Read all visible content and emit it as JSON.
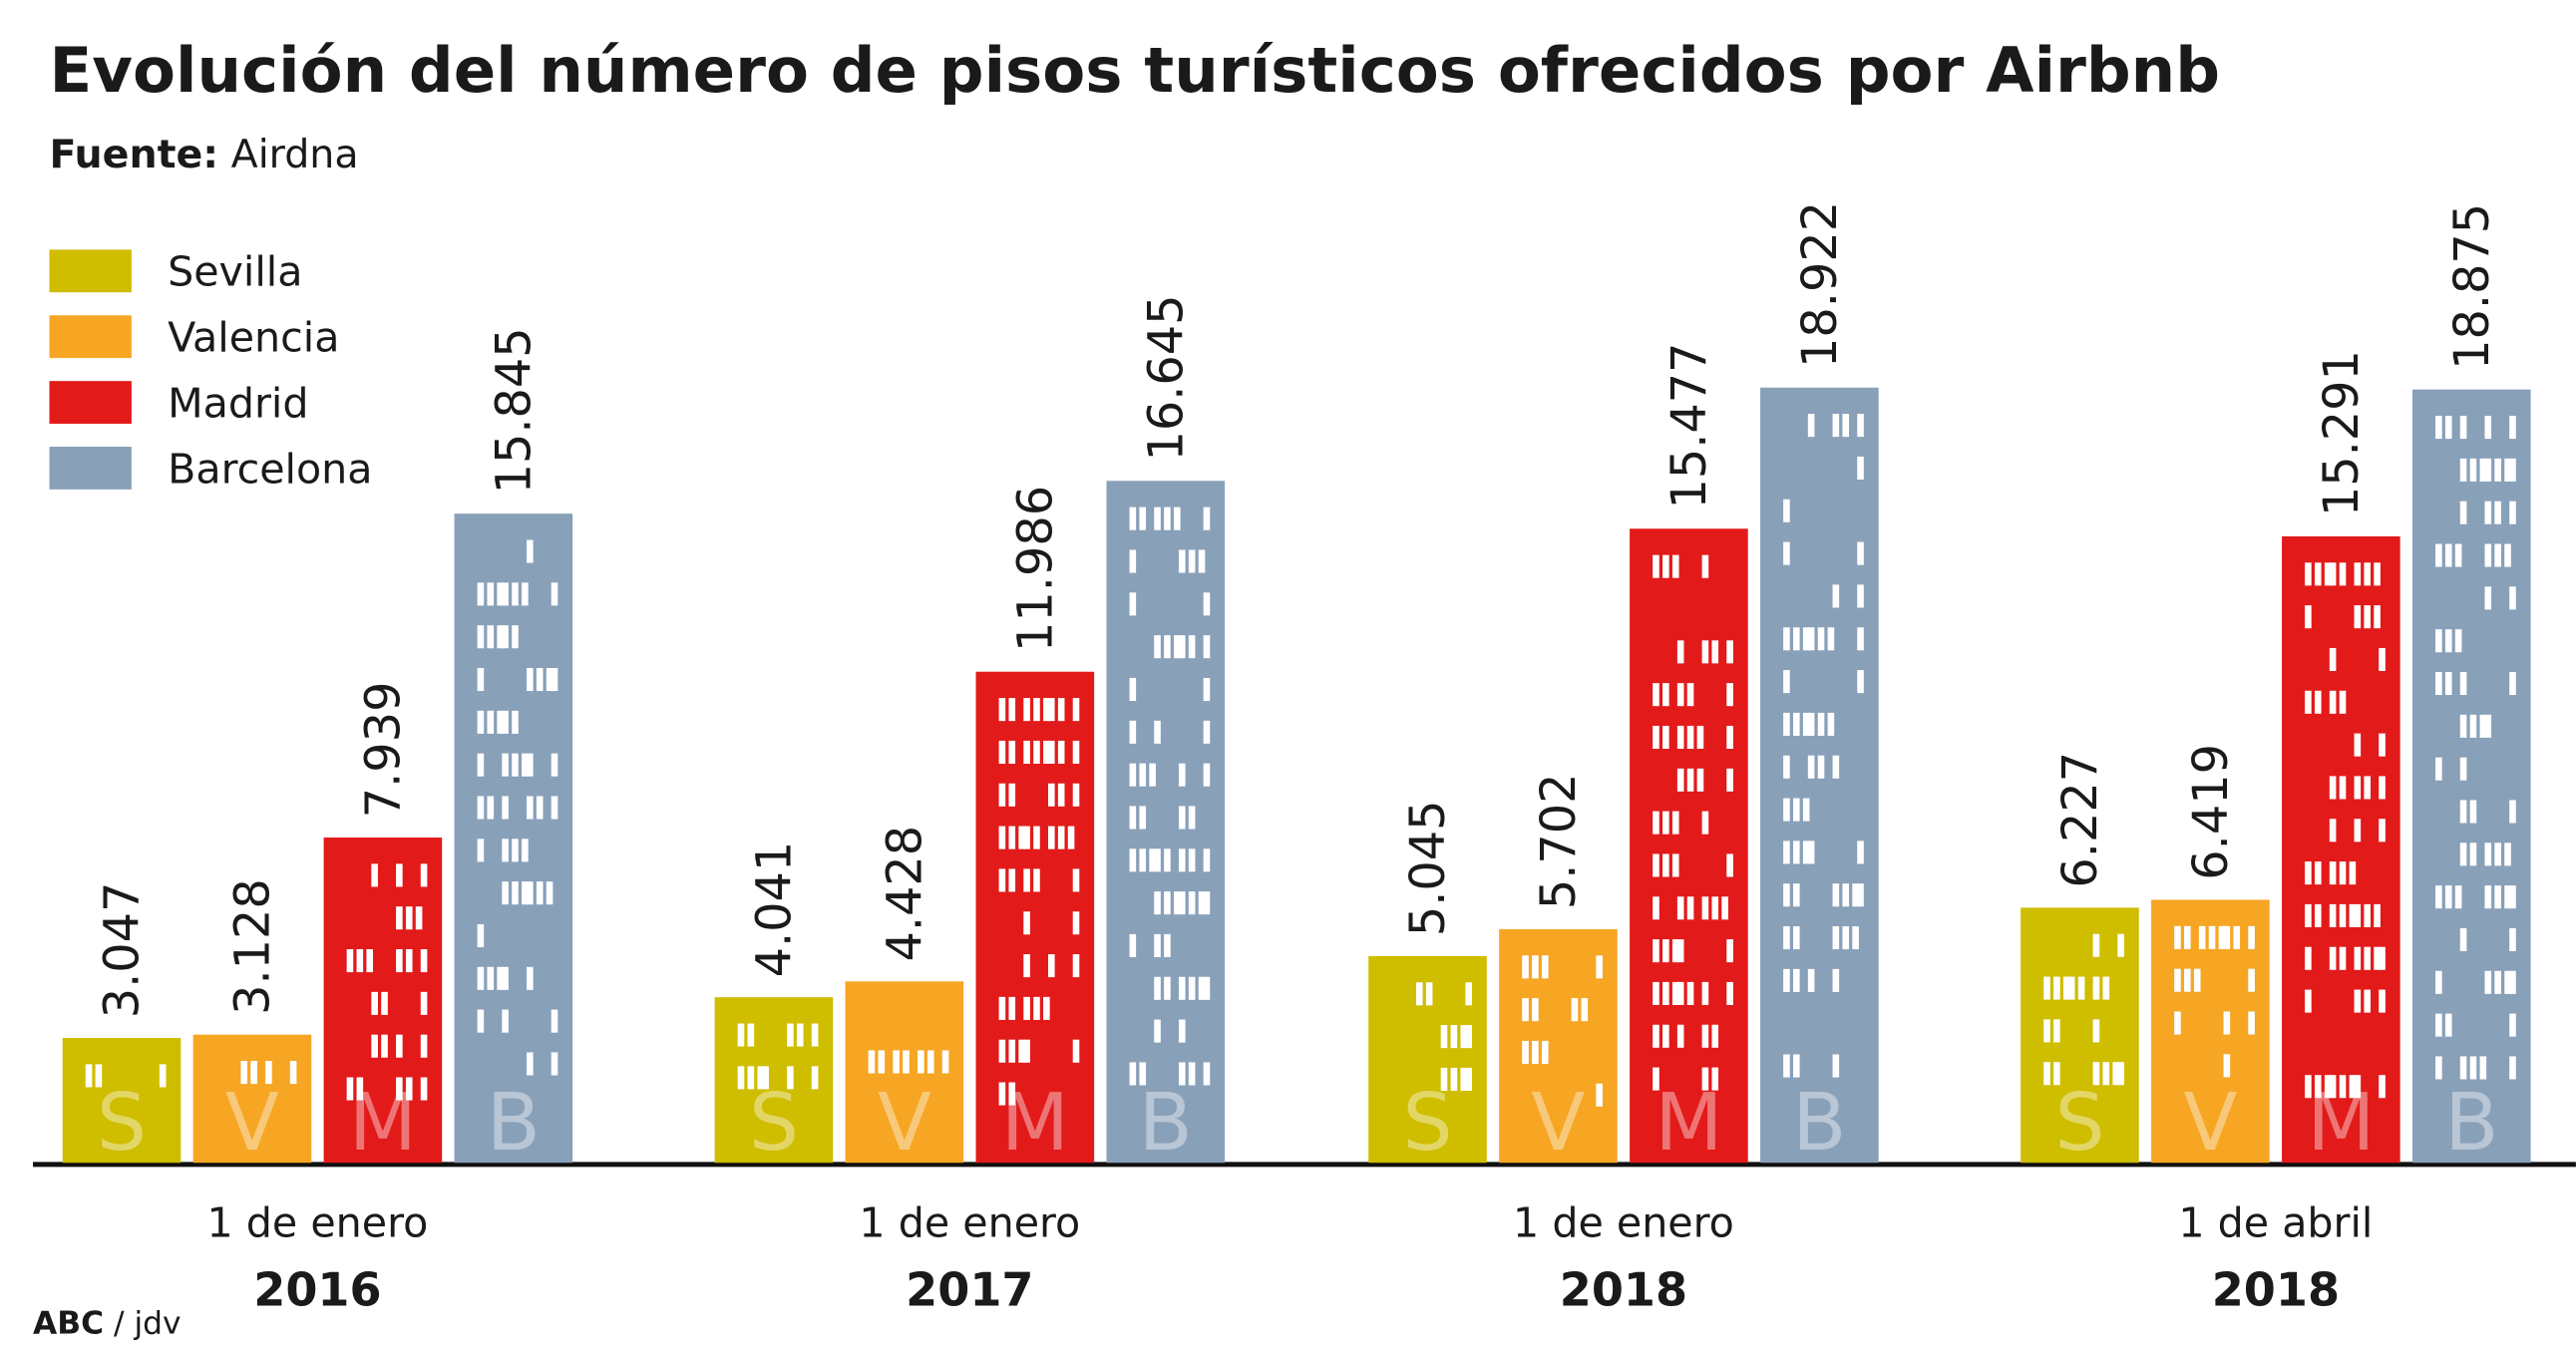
{
  "chart_data": {
    "type": "bar",
    "title": "Evolución del número de pisos turísticos ofrecidos por Airbnb",
    "source": {
      "label": "Fuente:",
      "text": "Airdna"
    },
    "credit": {
      "org": "ABC",
      "author": "/ jdv"
    },
    "categories": [
      [
        "1 de enero",
        "2016"
      ],
      [
        "1 de enero",
        "2017"
      ],
      [
        "1 de enero",
        "2018"
      ],
      [
        "1 de abril",
        "2018"
      ]
    ],
    "series": [
      {
        "name": "Sevilla",
        "letter": "S",
        "color": "#cfbd00",
        "values": [
          3047,
          4041,
          5045,
          6227
        ],
        "value_labels": [
          "3.047",
          "4.041",
          "5.045",
          "6.227"
        ]
      },
      {
        "name": "Valencia",
        "letter": "V",
        "color": "#f6a623",
        "values": [
          3128,
          4428,
          5702,
          6419
        ],
        "value_labels": [
          "3.128",
          "4.428",
          "5.702",
          "6.419"
        ]
      },
      {
        "name": "Madrid",
        "letter": "M",
        "color": "#e31a1a",
        "values": [
          7939,
          11986,
          15477,
          15291
        ],
        "value_labels": [
          "7.939",
          "11.986",
          "15.477",
          "15.291"
        ]
      },
      {
        "name": "Barcelona",
        "letter": "B",
        "color": "#89a0b9",
        "values": [
          15845,
          16645,
          18922,
          18875
        ],
        "value_labels": [
          "15.845",
          "16.645",
          "18.922",
          "18.875"
        ]
      }
    ],
    "legend": "top-left"
  }
}
